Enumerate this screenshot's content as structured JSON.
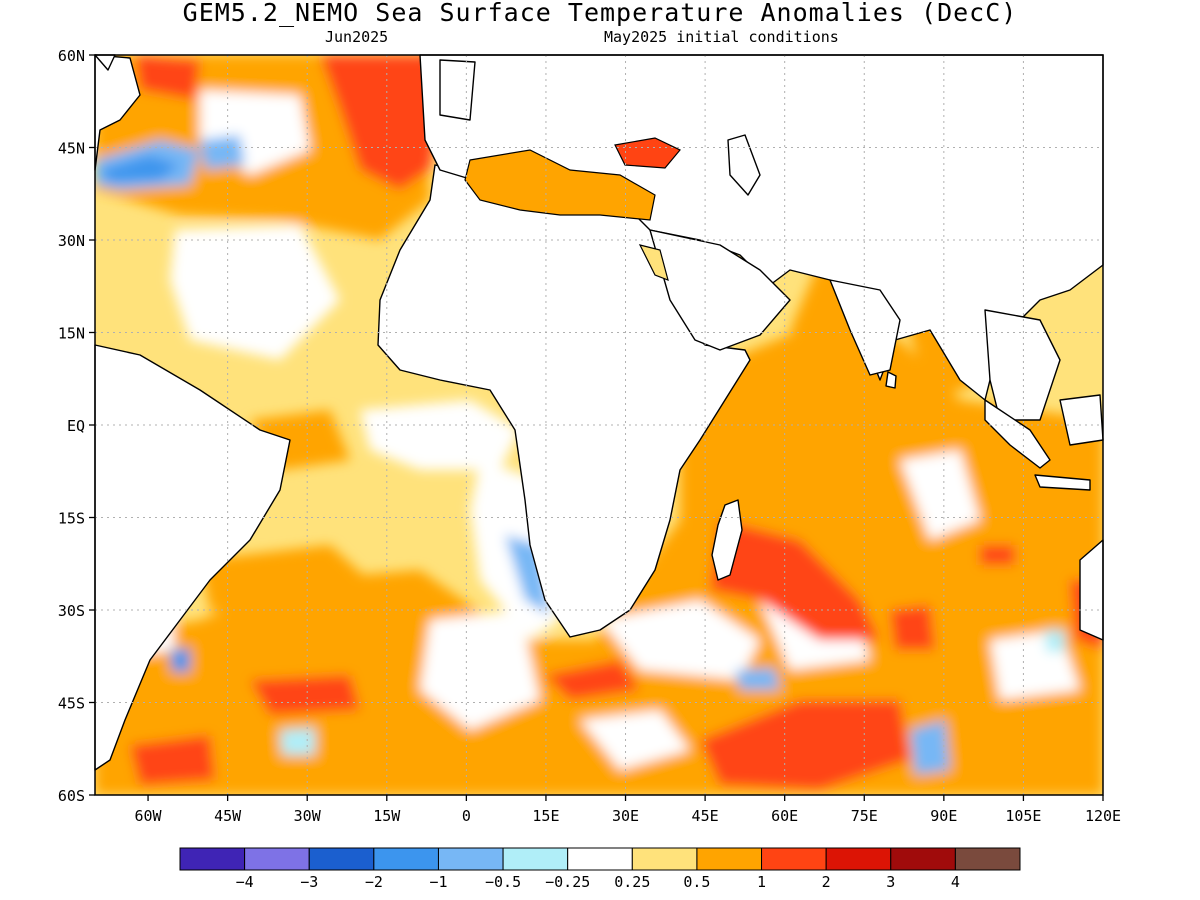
{
  "title": "GEM5.2_NEMO Sea Surface Temperature Anomalies (DecC)",
  "subtitle_left": "Jun2025",
  "subtitle_right": "May2025 initial conditions",
  "map": {
    "region": "Atlantic and Indian Ocean",
    "lon_range": [
      -70,
      120
    ],
    "lat_range": [
      -60,
      60
    ],
    "lon_ticks": [
      "60W",
      "45W",
      "30W",
      "15W",
      "0",
      "15E",
      "30E",
      "45E",
      "60E",
      "75E",
      "90E",
      "105E",
      "120E"
    ],
    "lat_ticks": [
      "60N",
      "45N",
      "30N",
      "15N",
      "EQ",
      "15S",
      "30S",
      "45S",
      "60S"
    ],
    "gridlines": "dotted",
    "land_color": "#ffffff",
    "coastline_color": "#000000"
  },
  "colorbar": {
    "colors": [
      "#3f24b5",
      "#7e72e6",
      "#1b5fcf",
      "#3c95ee",
      "#77b7f5",
      "#b0eef8",
      "#ffffff",
      "#ffe27b",
      "#ffa400",
      "#ff4413",
      "#dc1405",
      "#a00b0b",
      "#7a4a3d"
    ],
    "labels": [
      "−4",
      "−3",
      "−2",
      "−1",
      "−0.5",
      "−0.25",
      "0.25",
      "0.5",
      "1",
      "2",
      "3",
      "4"
    ]
  }
}
